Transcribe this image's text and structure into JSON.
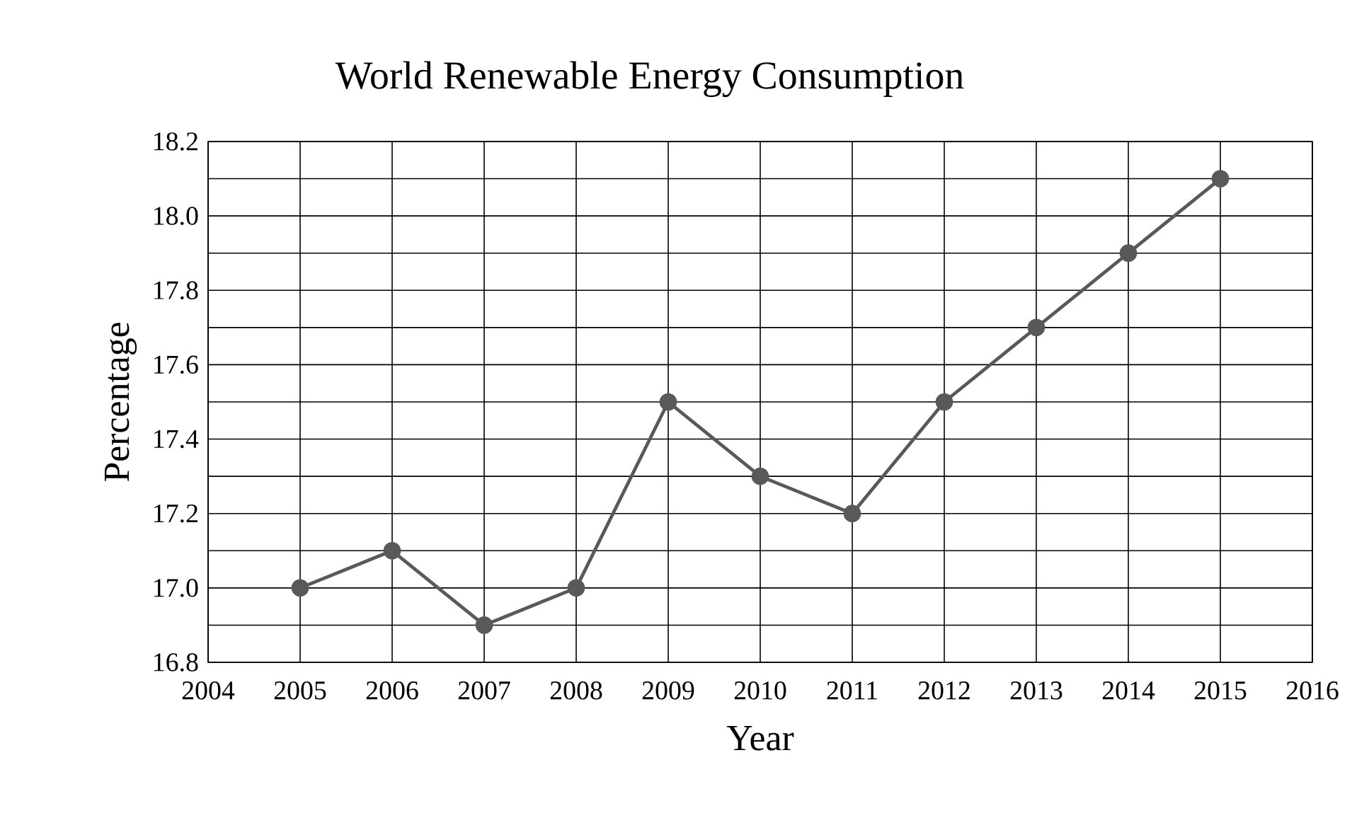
{
  "chart_data": {
    "type": "line",
    "title": "World Renewable Energy Consumption",
    "xlabel": "Year",
    "ylabel": "Percentage",
    "x": [
      2005,
      2006,
      2007,
      2008,
      2009,
      2010,
      2011,
      2012,
      2013,
      2014,
      2015
    ],
    "series": [
      {
        "color": "#595959",
        "values": [
          17.0,
          17.1,
          16.9,
          17.0,
          17.5,
          17.3,
          17.2,
          17.5,
          17.7,
          17.9,
          18.1
        ]
      }
    ],
    "xlim": [
      2004,
      2016
    ],
    "xticks": [
      2004,
      2005,
      2006,
      2007,
      2008,
      2009,
      2010,
      2011,
      2012,
      2013,
      2014,
      2015,
      2016
    ],
    "ylim": [
      16.8,
      18.2
    ],
    "yticks": [
      {
        "value": 16.8,
        "label": "16.8"
      },
      {
        "value": 16.9,
        "label": null
      },
      {
        "value": 17.0,
        "label": "17.0"
      },
      {
        "value": 17.1,
        "label": null
      },
      {
        "value": 17.2,
        "label": "17.2"
      },
      {
        "value": 17.3,
        "label": null
      },
      {
        "value": 17.4,
        "label": "17.4"
      },
      {
        "value": 17.5,
        "label": null
      },
      {
        "value": 17.6,
        "label": "17.6"
      },
      {
        "value": 17.7,
        "label": null
      },
      {
        "value": 17.8,
        "label": "17.8"
      },
      {
        "value": 17.9,
        "label": null
      },
      {
        "value": 18.0,
        "label": "18.0"
      },
      {
        "value": 18.1,
        "label": null
      },
      {
        "value": 18.2,
        "label": "18.2"
      }
    ],
    "grid": true,
    "marker": "circle",
    "line_style": "solid"
  }
}
